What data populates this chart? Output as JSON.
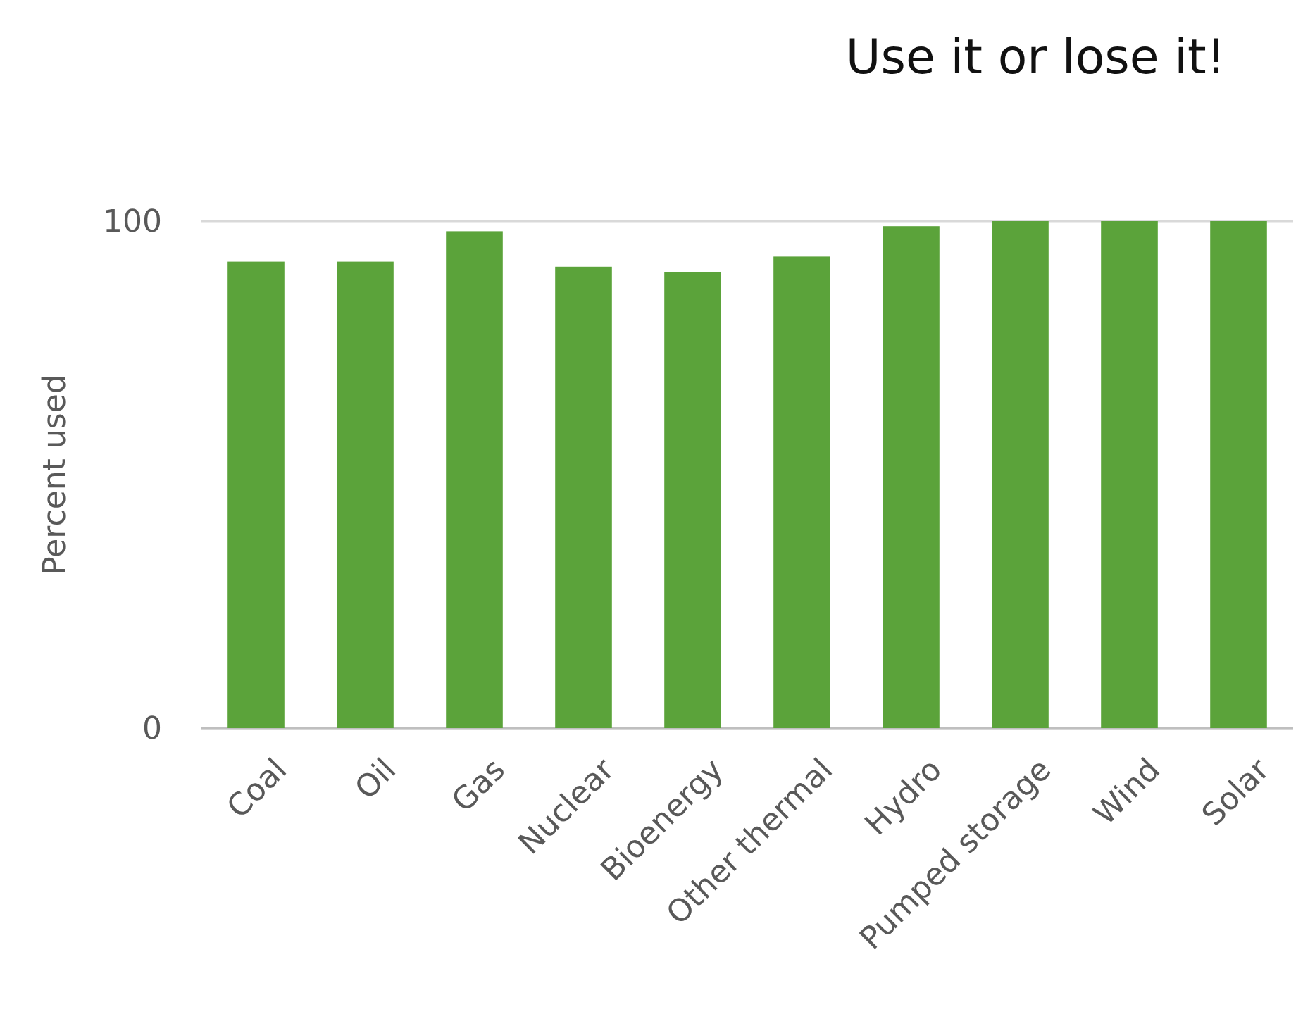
{
  "chart_data": {
    "type": "bar",
    "title": "Use it or lose it!",
    "ylabel": "Percent used",
    "categories": [
      "Coal",
      "Oil",
      "Gas",
      "Nuclear",
      "Bioenergy",
      "Other thermal",
      "Hydro",
      "Pumped storage",
      "Wind",
      "Solar"
    ],
    "values": [
      92,
      92,
      98,
      91,
      90,
      93,
      99,
      100,
      100,
      100
    ],
    "color": "#5ba33a",
    "ylim": [
      0,
      100
    ],
    "yticks": [
      0,
      100
    ],
    "grid": "y"
  }
}
